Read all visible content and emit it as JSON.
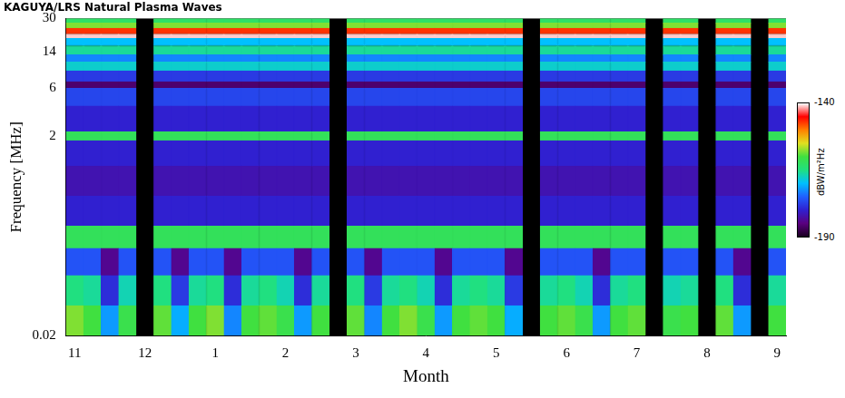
{
  "chart_data": {
    "type": "heatmap",
    "title": "KAGUYA/LRS Natural Plasma Waves",
    "x_label": "Month",
    "y_label": "Frequency [MHz]",
    "categories": [
      "11",
      null,
      null,
      null,
      "12",
      null,
      null,
      null,
      "1",
      null,
      null,
      null,
      "2",
      null,
      null,
      null,
      "3",
      null,
      null,
      null,
      "4",
      null,
      null,
      null,
      "5",
      null,
      null,
      null,
      "6",
      null,
      null,
      null,
      "7",
      null,
      null,
      null,
      "8",
      null,
      null,
      null,
      "9"
    ],
    "y_bins": [
      0.02,
      0.04,
      0.08,
      0.15,
      0.25,
      0.5,
      1,
      1.8,
      2.2,
      4,
      6,
      7,
      9,
      11,
      13,
      16,
      19,
      21,
      24,
      27,
      30
    ],
    "ylim": [
      0.02,
      30
    ],
    "yticks": [
      0.02,
      2,
      6,
      14,
      30
    ],
    "log": "y",
    "grid": false,
    "cells": [
      [
        -158,
        -160,
        -172,
        -161,
        null,
        -159,
        -171,
        -160,
        -158,
        -173,
        -160,
        -159,
        -161,
        -172,
        -160,
        null,
        -159,
        -173,
        -160,
        -158,
        -161,
        -172,
        -160,
        -159,
        -160,
        -171,
        null,
        -160,
        -159,
        -161,
        -172,
        -160,
        -159,
        null,
        -161,
        -160,
        null,
        -159,
        -172,
        null,
        -160
      ],
      [
        -165,
        -166,
        -179,
        -167,
        null,
        -165,
        -178,
        -166,
        -165,
        -179,
        -166,
        -165,
        -167,
        -179,
        -166,
        null,
        -165,
        -178,
        -166,
        -165,
        -167,
        -179,
        -166,
        -165,
        -166,
        -178,
        null,
        -166,
        -165,
        -167,
        -179,
        -166,
        -165,
        null,
        -167,
        -166,
        null,
        -165,
        -179,
        null,
        -166
      ],
      [
        -176,
        -176,
        -184,
        -176,
        null,
        -176,
        -184,
        -176,
        -176,
        -184,
        -176,
        -176,
        -176,
        -184,
        -176,
        null,
        -176,
        -184,
        -176,
        -176,
        -176,
        -184,
        -176,
        -176,
        -176,
        -184,
        null,
        -176,
        -176,
        -176,
        -184,
        -176,
        -176,
        null,
        -176,
        -176,
        null,
        -176,
        -184,
        null,
        -176
      ],
      [
        -162,
        -162,
        -162,
        -162,
        null,
        -162,
        -162,
        -162,
        -162,
        -162,
        -162,
        -162,
        -162,
        -162,
        -162,
        null,
        -162,
        -162,
        -162,
        -162,
        -162,
        -162,
        -162,
        -162,
        -162,
        -162,
        null,
        -162,
        -162,
        -162,
        -162,
        -162,
        -162,
        null,
        -162,
        -162,
        null,
        -162,
        -162,
        null,
        -162
      ],
      [
        -180,
        -180,
        -180,
        -180,
        null,
        -180,
        -180,
        -180,
        -180,
        -180,
        -180,
        -180,
        -180,
        -180,
        -180,
        null,
        -180,
        -180,
        -180,
        -180,
        -180,
        -180,
        -180,
        -180,
        -180,
        -180,
        null,
        -180,
        -180,
        -180,
        -180,
        -180,
        -180,
        null,
        -180,
        -180,
        null,
        -180,
        -180,
        null,
        -180
      ],
      [
        -182,
        -182,
        -182,
        -182,
        null,
        -182,
        -182,
        -182,
        -182,
        -182,
        -182,
        -182,
        -182,
        -182,
        -182,
        null,
        -182,
        -182,
        -182,
        -182,
        -182,
        -182,
        -182,
        -182,
        -182,
        -182,
        null,
        -182,
        -182,
        -182,
        -182,
        -182,
        -182,
        null,
        -182,
        -182,
        null,
        -182,
        -182,
        null,
        -182
      ],
      [
        -180,
        -180,
        -180,
        -180,
        null,
        -180,
        -180,
        -180,
        -180,
        -180,
        -180,
        -180,
        -180,
        -180,
        -180,
        null,
        -180,
        -180,
        -180,
        -180,
        -180,
        -180,
        -180,
        -180,
        -180,
        -180,
        null,
        -180,
        -180,
        -180,
        -180,
        -180,
        -180,
        null,
        -180,
        -180,
        null,
        -180,
        -180,
        null,
        -180
      ],
      [
        -162,
        -162,
        -162,
        -162,
        null,
        -162,
        -162,
        -162,
        -162,
        -162,
        -162,
        -162,
        -162,
        -162,
        -162,
        null,
        -162,
        -162,
        -162,
        -162,
        -162,
        -162,
        -162,
        -162,
        -162,
        -162,
        null,
        -162,
        -162,
        -162,
        -162,
        -162,
        -162,
        null,
        -162,
        -162,
        null,
        -162,
        -162,
        null,
        -162
      ],
      [
        -180,
        -180,
        -180,
        -180,
        null,
        -180,
        -180,
        -180,
        -180,
        -180,
        -180,
        -180,
        -180,
        -180,
        -180,
        null,
        -180,
        -180,
        -180,
        -180,
        -180,
        -180,
        -180,
        -180,
        -180,
        -180,
        null,
        -180,
        -180,
        -180,
        -180,
        -180,
        -180,
        null,
        -180,
        -180,
        null,
        -180,
        -180,
        null,
        -180
      ],
      [
        -177,
        -177,
        -177,
        -177,
        null,
        -177,
        -177,
        -177,
        -177,
        -177,
        -177,
        -177,
        -177,
        -177,
        -177,
        null,
        -177,
        -177,
        -177,
        -177,
        -177,
        -177,
        -177,
        -177,
        -177,
        -177,
        null,
        -177,
        -177,
        -177,
        -177,
        -177,
        -177,
        null,
        -177,
        -177,
        null,
        -177,
        -177,
        null,
        -177
      ],
      [
        -186,
        -186,
        -186,
        -186,
        null,
        -186,
        -186,
        -186,
        -186,
        -186,
        -186,
        -186,
        -186,
        -186,
        -186,
        null,
        -186,
        -186,
        -186,
        -186,
        -186,
        -186,
        -186,
        -186,
        -186,
        -186,
        null,
        -186,
        -186,
        -186,
        -186,
        -186,
        -186,
        null,
        -186,
        -186,
        null,
        -186,
        -186,
        null,
        -186
      ],
      [
        -178,
        -178,
        -178,
        -178,
        null,
        -178,
        -178,
        -178,
        -178,
        -178,
        -178,
        -178,
        -178,
        -178,
        -178,
        null,
        -178,
        -178,
        -178,
        -178,
        -178,
        -178,
        -178,
        -178,
        -178,
        -178,
        null,
        -178,
        -178,
        -178,
        -178,
        -178,
        -178,
        null,
        -178,
        -178,
        null,
        -178,
        -178,
        null,
        -178
      ],
      [
        -168,
        -168,
        -168,
        -168,
        null,
        -168,
        -168,
        -168,
        -168,
        -168,
        -168,
        -168,
        -168,
        -168,
        -168,
        null,
        -168,
        -168,
        -168,
        -168,
        -168,
        -168,
        -168,
        -168,
        -168,
        -168,
        null,
        -168,
        -168,
        -168,
        -168,
        -168,
        -168,
        null,
        -168,
        -168,
        null,
        -168,
        -168,
        null,
        -168
      ],
      [
        -173,
        -173,
        -173,
        -173,
        null,
        -173,
        -173,
        -173,
        -173,
        -173,
        -173,
        -173,
        -173,
        -173,
        -173,
        null,
        -173,
        -173,
        -173,
        -173,
        -173,
        -173,
        -173,
        -173,
        -173,
        -173,
        null,
        -173,
        -173,
        -173,
        -173,
        -173,
        -173,
        null,
        -173,
        -173,
        null,
        -173,
        -173,
        null,
        -173
      ],
      [
        -166,
        -166,
        -166,
        -166,
        null,
        -166,
        -166,
        -166,
        -166,
        -166,
        -166,
        -166,
        -166,
        -166,
        -166,
        null,
        -166,
        -166,
        -166,
        -166,
        -166,
        -166,
        -166,
        -166,
        -166,
        -166,
        null,
        -166,
        -166,
        -166,
        -166,
        -166,
        -166,
        null,
        -166,
        -166,
        null,
        -166,
        -166,
        null,
        -166
      ],
      [
        -170,
        -170,
        -170,
        -170,
        null,
        -170,
        -170,
        -170,
        -170,
        -170,
        -170,
        -170,
        -170,
        -170,
        -170,
        null,
        -170,
        -170,
        -170,
        -170,
        -170,
        -170,
        -170,
        -170,
        -170,
        -170,
        null,
        -170,
        -170,
        -170,
        -170,
        -170,
        -170,
        null,
        -170,
        -170,
        null,
        -170,
        -170,
        null,
        -170
      ],
      [
        -141,
        -141,
        -141,
        -141,
        null,
        -141,
        -141,
        -141,
        -141,
        -141,
        -141,
        -141,
        -141,
        -141,
        -141,
        null,
        -141,
        -141,
        -141,
        -141,
        -141,
        -141,
        -141,
        -141,
        -141,
        -141,
        null,
        -141,
        -141,
        -141,
        -141,
        -141,
        -141,
        null,
        -141,
        -141,
        null,
        -141,
        -141,
        null,
        -141
      ],
      [
        -147,
        -147,
        -147,
        -147,
        null,
        -147,
        -147,
        -147,
        -147,
        -147,
        -147,
        -147,
        -147,
        -147,
        -147,
        null,
        -147,
        -147,
        -147,
        -147,
        -147,
        -147,
        -147,
        -147,
        -147,
        -147,
        null,
        -147,
        -147,
        -147,
        -147,
        -147,
        -147,
        null,
        -147,
        -147,
        null,
        -147,
        -147,
        null,
        -147
      ],
      [
        -158,
        -158,
        -158,
        -158,
        null,
        -158,
        -158,
        -158,
        -158,
        -158,
        -158,
        -158,
        -158,
        -158,
        -158,
        null,
        -158,
        -158,
        -158,
        -158,
        -158,
        -158,
        -158,
        -158,
        -158,
        -158,
        null,
        -158,
        -158,
        -158,
        -158,
        -158,
        -158,
        null,
        -158,
        -158,
        null,
        -158,
        -158,
        null,
        -158
      ],
      [
        -163,
        -163,
        -163,
        -163,
        null,
        -163,
        -163,
        -163,
        -163,
        -163,
        -163,
        -163,
        -163,
        -163,
        -163,
        null,
        -163,
        -163,
        -163,
        -163,
        -163,
        -163,
        -163,
        -163,
        -163,
        -163,
        null,
        -163,
        -163,
        -163,
        -163,
        -163,
        -163,
        null,
        -163,
        -163,
        null,
        -163,
        -163,
        null,
        -163
      ]
    ],
    "clim": [
      -190,
      -140
    ],
    "cticks": [
      -140,
      -190
    ],
    "colorbar_label": "dBW/m²Hz"
  }
}
